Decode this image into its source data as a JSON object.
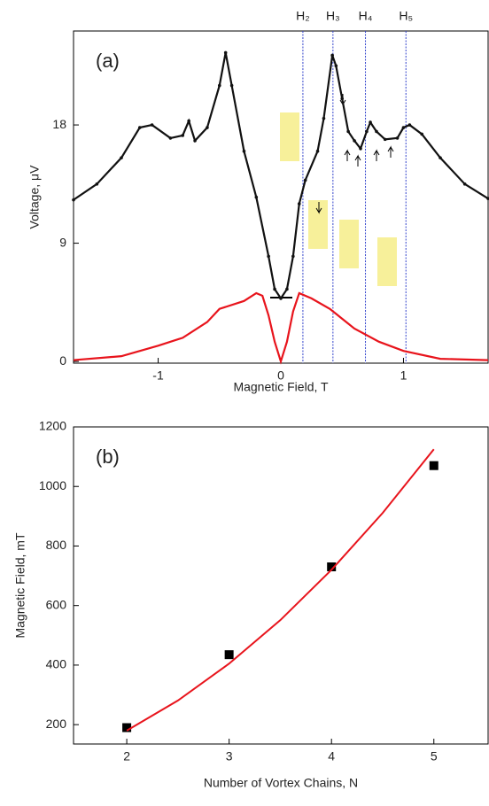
{
  "chart_data": [
    {
      "type": "line",
      "label": "(a)",
      "x_label": "Magnetic Field, T",
      "y_label": "Voltage, μV",
      "xlim": [
        -1.69,
        1.69
      ],
      "ylim": [
        -0.13,
        25.15
      ],
      "xticks": [
        -1,
        0,
        1
      ],
      "yticks": [
        0,
        9,
        18
      ],
      "markers": [
        {
          "label": "H₂",
          "x": 0.18
        },
        {
          "label": "H₃",
          "x": 0.425
        },
        {
          "label": "H₄",
          "x": 0.69
        },
        {
          "label": "H₅",
          "x": 1.02
        }
      ],
      "marker_color": "#3344cc",
      "series": [
        {
          "color": "#111111",
          "mode": "line+markers",
          "x": [
            -1.69,
            -1.5,
            -1.3,
            -1.15,
            -1.05,
            -0.9,
            -0.8,
            -0.75,
            -0.7,
            -0.6,
            -0.5,
            -0.45,
            -0.4,
            -0.3,
            -0.2,
            -0.1,
            -0.05,
            0,
            0.05,
            0.1,
            0.15,
            0.2,
            0.3,
            0.35,
            0.42,
            0.45,
            0.5,
            0.55,
            0.6,
            0.65,
            0.7,
            0.73,
            0.78,
            0.85,
            0.95,
            1.0,
            1.05,
            1.15,
            1.3,
            1.5,
            1.69
          ],
          "values": [
            12.3,
            13.5,
            15.5,
            17.8,
            18.0,
            17,
            17.2,
            18.3,
            16.8,
            17.8,
            21,
            23.5,
            21,
            16,
            12.5,
            8,
            5.5,
            4.8,
            5.5,
            8,
            12,
            13.8,
            16,
            18.5,
            23.3,
            22.5,
            20,
            17.5,
            16.8,
            16.2,
            17.5,
            18.2,
            17.5,
            16.9,
            17,
            17.8,
            18.0,
            17.3,
            15.5,
            13.5,
            12.4
          ]
        },
        {
          "color": "#e8141c",
          "mode": "line",
          "x": [
            -1.69,
            -1.3,
            -1.0,
            -0.8,
            -0.6,
            -0.5,
            -0.3,
            -0.2,
            -0.15,
            -0.1,
            -0.05,
            0,
            0.05,
            0.1,
            0.15,
            0.25,
            0.4,
            0.6,
            0.8,
            1.0,
            1.3,
            1.69
          ],
          "values": [
            0.1,
            0.4,
            1.2,
            1.8,
            3,
            4,
            4.6,
            5.2,
            5,
            3.5,
            1.5,
            0,
            1.5,
            3.8,
            5.2,
            4.8,
            4,
            2.5,
            1.5,
            0.8,
            0.2,
            0.1
          ]
        }
      ]
    },
    {
      "type": "scatter",
      "label": "(b)",
      "x_label": "Number of Vortex Chains, N",
      "y_label": "Magnetic Field, mT",
      "xlim": [
        1.48,
        5.53
      ],
      "ylim": [
        135,
        1200
      ],
      "xticks": [
        2,
        3,
        4,
        5
      ],
      "yticks": [
        200,
        400,
        600,
        800,
        1000,
        1200
      ],
      "series": [
        {
          "color": "#000000",
          "mode": "markers",
          "x": [
            2,
            3,
            4,
            5
          ],
          "values": [
            190,
            435,
            730,
            1070
          ]
        },
        {
          "color": "#e8141c",
          "mode": "line",
          "x": [
            2,
            2.5,
            3,
            3.5,
            4,
            4.5,
            5
          ],
          "values": [
            180,
            281,
            405,
            551,
            720,
            911,
            1125
          ]
        }
      ]
    }
  ]
}
